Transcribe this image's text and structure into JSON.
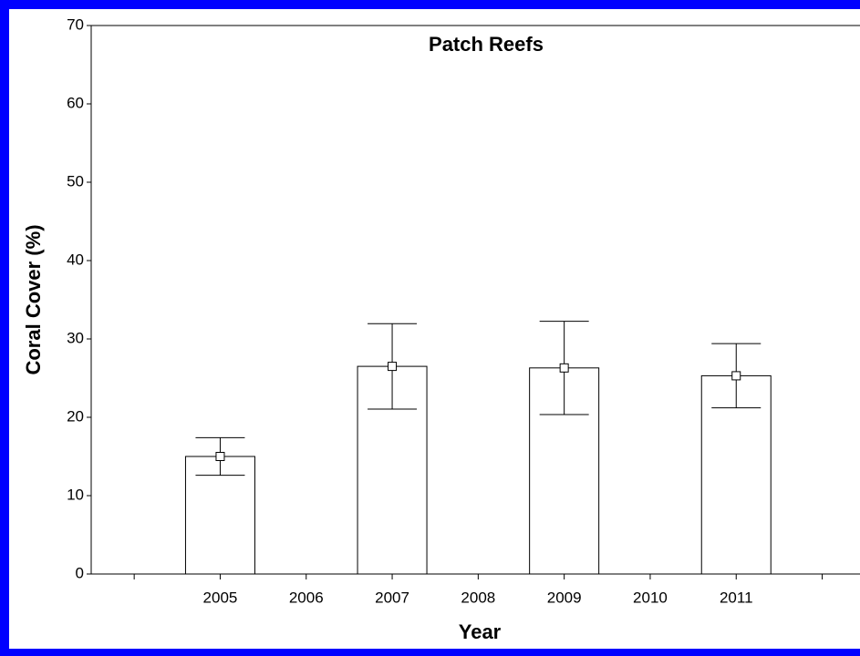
{
  "chart_data": {
    "type": "bar",
    "title": "Patch Reefs",
    "x_label": "Year",
    "y_label": "Coral Cover (%)",
    "categories": [
      null,
      "2005",
      "2006",
      "2007",
      "2008",
      "2009",
      "2010",
      "2011",
      null
    ],
    "values": [
      null,
      15,
      null,
      26.5,
      null,
      26.3,
      null,
      25.3,
      null
    ],
    "errors": [
      null,
      2.4,
      null,
      5.45,
      null,
      5.95,
      null,
      4.1,
      null
    ],
    "color": "#ffffff",
    "ylim": [
      0,
      70
    ],
    "yticks": [
      0,
      10,
      20,
      30,
      40,
      50,
      60,
      70
    ],
    "grid": false
  }
}
